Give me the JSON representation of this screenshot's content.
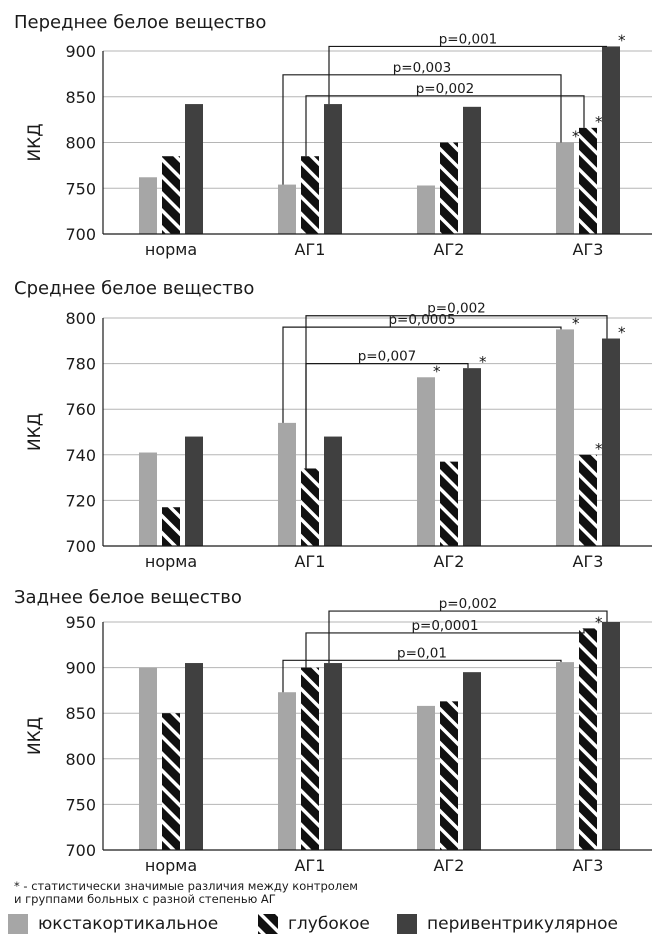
{
  "colors": {
    "juxta": "#a6a6a6",
    "deep_bg": "#111111",
    "deep_stripe": "#ffffff",
    "peri": "#404040"
  },
  "legend": {
    "items": [
      {
        "label": "юкстакортикальное",
        "key": "juxta"
      },
      {
        "label": "глубокое",
        "key": "deep"
      },
      {
        "label": "перивентрикулярное",
        "key": "peri"
      }
    ]
  },
  "footnote": {
    "line1": "* - статистически значимые различия между контролем",
    "line2": "и группами больных с разной степенью АГ"
  },
  "chart_data": [
    {
      "type": "bar",
      "title": "Переднее белое вещество",
      "ylabel": "ИКД",
      "ylim": [
        700,
        900
      ],
      "yticks": [
        700,
        750,
        800,
        850,
        900
      ],
      "categories": [
        "норма",
        "АГ1",
        "АГ2",
        "АГ3"
      ],
      "series": [
        {
          "name": "юкстакортикальное",
          "values": [
            762,
            754,
            753,
            800
          ],
          "stars": [
            false,
            false,
            false,
            true
          ]
        },
        {
          "name": "глубокое",
          "values": [
            785,
            785,
            800,
            816
          ],
          "stars": [
            false,
            false,
            false,
            true
          ]
        },
        {
          "name": "перивентрикулярное",
          "values": [
            842,
            842,
            839,
            905
          ],
          "stars": [
            false,
            false,
            false,
            true
          ]
        }
      ],
      "brackets": [
        {
          "label": "p=0,001",
          "from_cat": 1,
          "from_series": 2,
          "to_cat": 3,
          "to_series": 2,
          "level": 905
        },
        {
          "label": "p=0,003",
          "from_cat": 1,
          "from_series": 0,
          "to_cat": 3,
          "to_series": 0,
          "level": 874
        },
        {
          "label": "p=0,002",
          "from_cat": 1,
          "from_series": 1,
          "to_cat": 3,
          "to_series": 1,
          "level": 851
        }
      ]
    },
    {
      "type": "bar",
      "title": "Среднее белое вещество",
      "ylabel": "ИКД",
      "ylim": [
        700,
        800
      ],
      "yticks": [
        700,
        720,
        740,
        760,
        780,
        800
      ],
      "categories": [
        "норма",
        "АГ1",
        "АГ2",
        "АГ3"
      ],
      "series": [
        {
          "name": "юкстакортикальное",
          "values": [
            741,
            754,
            774,
            795
          ],
          "stars": [
            false,
            false,
            true,
            true
          ]
        },
        {
          "name": "глубокое",
          "values": [
            717,
            734,
            737,
            740
          ],
          "stars": [
            false,
            false,
            false,
            true
          ]
        },
        {
          "name": "перивентрикулярное",
          "values": [
            748,
            748,
            778,
            791
          ],
          "stars": [
            false,
            false,
            true,
            true
          ]
        }
      ],
      "brackets": [
        {
          "label": "p=0,002",
          "from_cat": 1,
          "from_series": 1,
          "to_cat": 3,
          "to_series": 2,
          "level": 801
        },
        {
          "label": "p=0,0005",
          "from_cat": 1,
          "from_series": 0,
          "to_cat": 3,
          "to_series": 0,
          "level": 796
        },
        {
          "label": "p=0,007",
          "from_cat": 1,
          "from_series": 1,
          "to_cat": 2,
          "to_series": 2,
          "level": 780
        }
      ]
    },
    {
      "type": "bar",
      "title": "Заднее белое вещество",
      "ylabel": "ИКД",
      "ylim": [
        700,
        950
      ],
      "yticks": [
        700,
        750,
        800,
        850,
        900,
        950
      ],
      "categories": [
        "норма",
        "АГ1",
        "АГ2",
        "АГ3"
      ],
      "series": [
        {
          "name": "юкстакортикальное",
          "values": [
            900,
            873,
            858,
            906
          ],
          "stars": [
            false,
            false,
            false,
            false
          ]
        },
        {
          "name": "глубокое",
          "values": [
            850,
            900,
            863,
            943
          ],
          "stars": [
            false,
            false,
            false,
            true
          ]
        },
        {
          "name": "перивентрикулярное",
          "values": [
            905,
            905,
            895,
            950
          ],
          "stars": [
            false,
            false,
            false,
            false
          ]
        }
      ],
      "brackets": [
        {
          "label": "p=0,002",
          "from_cat": 1,
          "from_series": 2,
          "to_cat": 3,
          "to_series": 2,
          "level": 962
        },
        {
          "label": "p=0,0001",
          "from_cat": 1,
          "from_series": 1,
          "to_cat": 3,
          "to_series": 1,
          "level": 938
        },
        {
          "label": "p=0,01",
          "from_cat": 1,
          "from_series": 0,
          "to_cat": 3,
          "to_series": 0,
          "level": 908
        }
      ]
    }
  ]
}
